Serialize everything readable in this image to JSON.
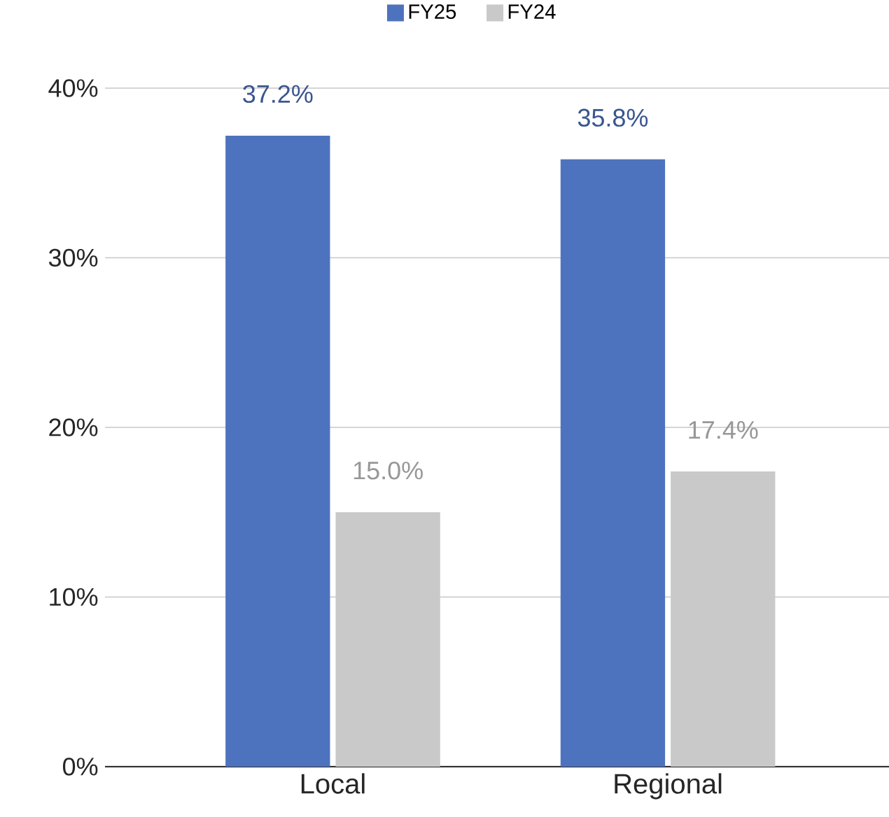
{
  "chart_data": {
    "type": "bar",
    "categories": [
      "Local",
      "Regional"
    ],
    "series": [
      {
        "name": "FY25",
        "color": "#4e73be",
        "values": [
          37.2,
          35.8
        ],
        "value_labels": [
          "37.2%",
          "35.8%"
        ]
      },
      {
        "name": "FY24",
        "color": "#c9c9c9",
        "values": [
          15.0,
          17.4
        ],
        "value_labels": [
          "15.0%",
          "17.4%"
        ]
      }
    ],
    "ylim": [
      0,
      40
    ],
    "yticks": [
      {
        "value": 0,
        "label": "0%"
      },
      {
        "value": 10,
        "label": "10%"
      },
      {
        "value": 20,
        "label": "20%"
      },
      {
        "value": 30,
        "label": "30%"
      },
      {
        "value": 40,
        "label": "40%"
      }
    ],
    "grid": "y",
    "legend": "top"
  }
}
